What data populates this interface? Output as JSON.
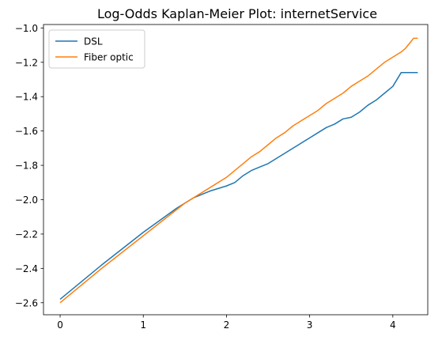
{
  "chart_data": {
    "type": "line",
    "title": "Log-Odds Kaplan-Meier Plot: internetService",
    "xlabel": "",
    "ylabel": "",
    "xlim": [
      -0.2,
      4.42
    ],
    "ylim": [
      -2.67,
      -0.98
    ],
    "xticks": [
      0,
      1,
      2,
      3,
      4
    ],
    "xtick_labels": [
      "0",
      "1",
      "2",
      "3",
      "4"
    ],
    "yticks": [
      -2.6,
      -2.4,
      -2.2,
      -2.0,
      -1.8,
      -1.6,
      -1.4,
      -1.2,
      -1.0
    ],
    "ytick_labels": [
      "−2.6",
      "−2.4",
      "−2.2",
      "−2.0",
      "−1.8",
      "−1.6",
      "−1.4",
      "−1.2",
      "−1.0"
    ],
    "grid": false,
    "legend_position": "upper-left",
    "series": [
      {
        "name": "DSL",
        "color": "#1f77b4",
        "points": [
          [
            0.0,
            -2.58
          ],
          [
            0.5,
            -2.38
          ],
          [
            1.0,
            -2.19
          ],
          [
            1.4,
            -2.05
          ],
          [
            1.6,
            -1.99
          ],
          [
            1.8,
            -1.95
          ],
          [
            2.0,
            -1.92
          ],
          [
            2.1,
            -1.9
          ],
          [
            2.2,
            -1.86
          ],
          [
            2.3,
            -1.83
          ],
          [
            2.4,
            -1.81
          ],
          [
            2.5,
            -1.79
          ],
          [
            2.6,
            -1.76
          ],
          [
            2.7,
            -1.73
          ],
          [
            2.8,
            -1.7
          ],
          [
            2.9,
            -1.67
          ],
          [
            3.0,
            -1.64
          ],
          [
            3.1,
            -1.61
          ],
          [
            3.2,
            -1.58
          ],
          [
            3.3,
            -1.56
          ],
          [
            3.4,
            -1.53
          ],
          [
            3.5,
            -1.52
          ],
          [
            3.6,
            -1.49
          ],
          [
            3.7,
            -1.45
          ],
          [
            3.8,
            -1.42
          ],
          [
            3.9,
            -1.38
          ],
          [
            4.0,
            -1.34
          ],
          [
            4.1,
            -1.26
          ],
          [
            4.2,
            -1.26
          ],
          [
            4.3,
            -1.26
          ]
        ]
      },
      {
        "name": "Fiber optic",
        "color": "#ff7f0e",
        "points": [
          [
            0.0,
            -2.6
          ],
          [
            0.5,
            -2.4
          ],
          [
            1.0,
            -2.21
          ],
          [
            1.5,
            -2.02
          ],
          [
            1.8,
            -1.93
          ],
          [
            2.0,
            -1.87
          ],
          [
            2.2,
            -1.79
          ],
          [
            2.3,
            -1.75
          ],
          [
            2.4,
            -1.72
          ],
          [
            2.5,
            -1.68
          ],
          [
            2.6,
            -1.64
          ],
          [
            2.7,
            -1.61
          ],
          [
            2.8,
            -1.57
          ],
          [
            2.9,
            -1.54
          ],
          [
            3.0,
            -1.51
          ],
          [
            3.1,
            -1.48
          ],
          [
            3.2,
            -1.44
          ],
          [
            3.3,
            -1.41
          ],
          [
            3.4,
            -1.38
          ],
          [
            3.5,
            -1.34
          ],
          [
            3.6,
            -1.31
          ],
          [
            3.7,
            -1.28
          ],
          [
            3.8,
            -1.24
          ],
          [
            3.9,
            -1.2
          ],
          [
            4.0,
            -1.17
          ],
          [
            4.1,
            -1.14
          ],
          [
            4.15,
            -1.12
          ],
          [
            4.2,
            -1.09
          ],
          [
            4.25,
            -1.06
          ],
          [
            4.3,
            -1.06
          ]
        ]
      }
    ]
  }
}
